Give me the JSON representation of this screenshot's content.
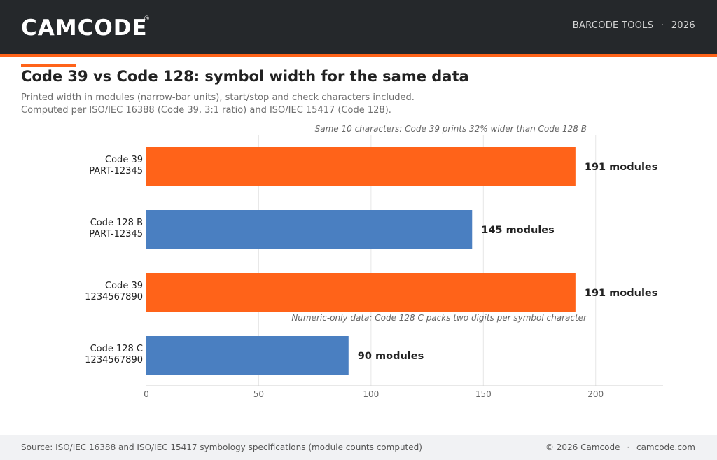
{
  "header": {
    "logo_text": "CAMCODE",
    "logo_mark": "®",
    "section": "BARCODE TOOLS",
    "separator": "·",
    "year": "2026"
  },
  "title": "Code 39 vs Code 128: symbol width for the same data",
  "subtitle_line1": "Printed width in modules (narrow-bar units), start/stop and check characters included.",
  "subtitle_line2": "Computed per ISO/IEC 16388 (Code 39, 3:1 ratio) and ISO/IEC 15417 (Code 128).",
  "footer": {
    "source": "Source: ISO/IEC 16388 and ISO/IEC 15417 symbology specifications (module counts computed)",
    "copyright": "© 2026 Camcode",
    "separator": "·",
    "site": "camcode.com"
  },
  "colors": {
    "code39": "#ff6319",
    "code128": "#4a7fc1",
    "header_bg": "#25282b",
    "accent": "#ff6319"
  },
  "chart_data": {
    "type": "bar",
    "orientation": "horizontal",
    "categories": [
      [
        "Code 39",
        "PART-12345"
      ],
      [
        "Code 128 B",
        "PART-12345"
      ],
      [
        "Code 39",
        "1234567890"
      ],
      [
        "Code 128 C",
        "1234567890"
      ]
    ],
    "values": [
      191,
      145,
      191,
      90
    ],
    "bar_symbology": [
      "code39",
      "code128",
      "code39",
      "code128"
    ],
    "value_suffix": "modules",
    "xlim": [
      0,
      230
    ],
    "xticks": [
      0,
      50,
      100,
      150,
      200
    ],
    "grid": "vertical",
    "annotations": [
      "Same 10 characters: Code 39 prints 32% wider than Code 128 B",
      "Numeric-only data: Code 128 C packs two digits per symbol character"
    ],
    "xlabel": "",
    "ylabel": ""
  }
}
